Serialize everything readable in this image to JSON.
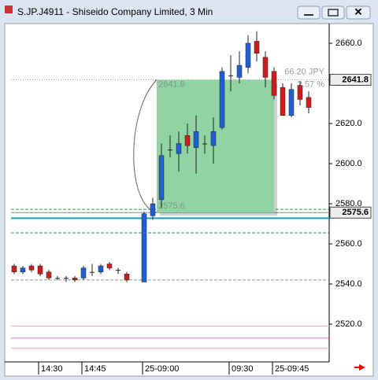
{
  "chart_data": {
    "type": "candlestick",
    "title": "S.JP.J4911 - Shiseido Company Limited, 3 Min",
    "categories": [
      null,
      null,
      null,
      "14:30",
      null,
      null,
      null,
      null,
      "14:45",
      null,
      null,
      null,
      null,
      null,
      null,
      "25-09:00",
      null,
      null,
      null,
      null,
      null,
      null,
      null,
      null,
      null,
      "09:30",
      null,
      null,
      null,
      null,
      "25-09:45",
      null,
      null,
      null,
      null
    ],
    "open": [
      2549,
      2546,
      2549,
      2549,
      2546,
      2543,
      2543,
      2543,
      2543,
      2546,
      2546,
      2550,
      2547,
      2545,
      null,
      2541,
      2574,
      2582,
      2607,
      2605,
      2614,
      2608,
      2610,
      2609,
      2618,
      2644,
      2643,
      2648,
      2661,
      2653,
      2646,
      2638,
      2624,
      2639,
      2633
    ],
    "high": [
      2550,
      2549,
      2550,
      2550,
      2547,
      2544,
      2544,
      2544,
      2549,
      2550,
      2550,
      2551,
      2548,
      2546,
      null,
      2576,
      2583,
      2610,
      2614,
      2616,
      2620,
      2624,
      2614,
      2623,
      2648,
      2654,
      2656,
      2664,
      2666,
      2656,
      2648,
      2640,
      2640,
      2641,
      2636
    ],
    "low": [
      2545,
      2545,
      2546,
      2544,
      2542,
      2542,
      2541,
      2541,
      2542,
      2544,
      2545,
      2547,
      2545,
      2541,
      null,
      2541,
      2572,
      2578,
      2603,
      2596,
      2605,
      2595,
      2605,
      2600,
      2617,
      2636,
      2640,
      2645,
      2651,
      2638,
      2632,
      2624,
      2623,
      2629,
      2625
    ],
    "close": [
      2546,
      2548,
      2547,
      2545,
      2543,
      2543,
      2543,
      2542,
      2548,
      2546,
      2549,
      2548,
      2547,
      2542,
      null,
      2575,
      2580,
      2604,
      2607,
      2610,
      2609,
      2616,
      2610,
      2616,
      2646,
      2644,
      2649,
      2660,
      2655,
      2643,
      2634,
      2624,
      2637,
      2632,
      2628
    ],
    "up_color": "#1f5fd0",
    "down_color": "#d01c1c",
    "ylim": [
      2502,
      2668
    ],
    "yticks": [
      {
        "value": 2520,
        "label": "2520.0"
      },
      {
        "value": 2540,
        "label": "2540.0"
      },
      {
        "value": 2560,
        "label": "2560.0"
      },
      {
        "value": 2580,
        "label": "2580.0"
      },
      {
        "value": 2600,
        "label": "2600.0"
      },
      {
        "value": 2620,
        "label": "2620.0"
      },
      {
        "value": 2640,
        "label": "2640.0"
      },
      {
        "value": 2660,
        "label": "2660.0"
      }
    ],
    "price_markers": [
      2641.8,
      2575.6
    ],
    "levels": [
      {
        "value": 2641.8,
        "color": "#999999",
        "style": "dotted"
      },
      {
        "value": 2577.2,
        "color": "#2a9d4a",
        "style": "dashed"
      },
      {
        "value": 2575.6,
        "color": "#888888",
        "style": "solid"
      },
      {
        "value": 2572.8,
        "color": "#17a2b8",
        "style": "thick"
      },
      {
        "value": 2565.5,
        "color": "#2a9d4a",
        "style": "dashed"
      },
      {
        "value": 2542,
        "color": "#999999",
        "style": "dashed"
      },
      {
        "value": 2519,
        "color": "#f0a8d0",
        "style": "solid"
      },
      {
        "value": 2513,
        "color": "#e070b8",
        "style": "solid"
      },
      {
        "value": 2508,
        "color": "#f0a8d0",
        "style": "solid"
      }
    ],
    "measure": {
      "high": 2641.8,
      "low": 2575.6,
      "color": "#8fd4a2",
      "change": {
        "value": 66.2,
        "label": "66.20 JPY"
      },
      "percent": {
        "value": 2.57,
        "label": "2.57 %"
      }
    }
  }
}
